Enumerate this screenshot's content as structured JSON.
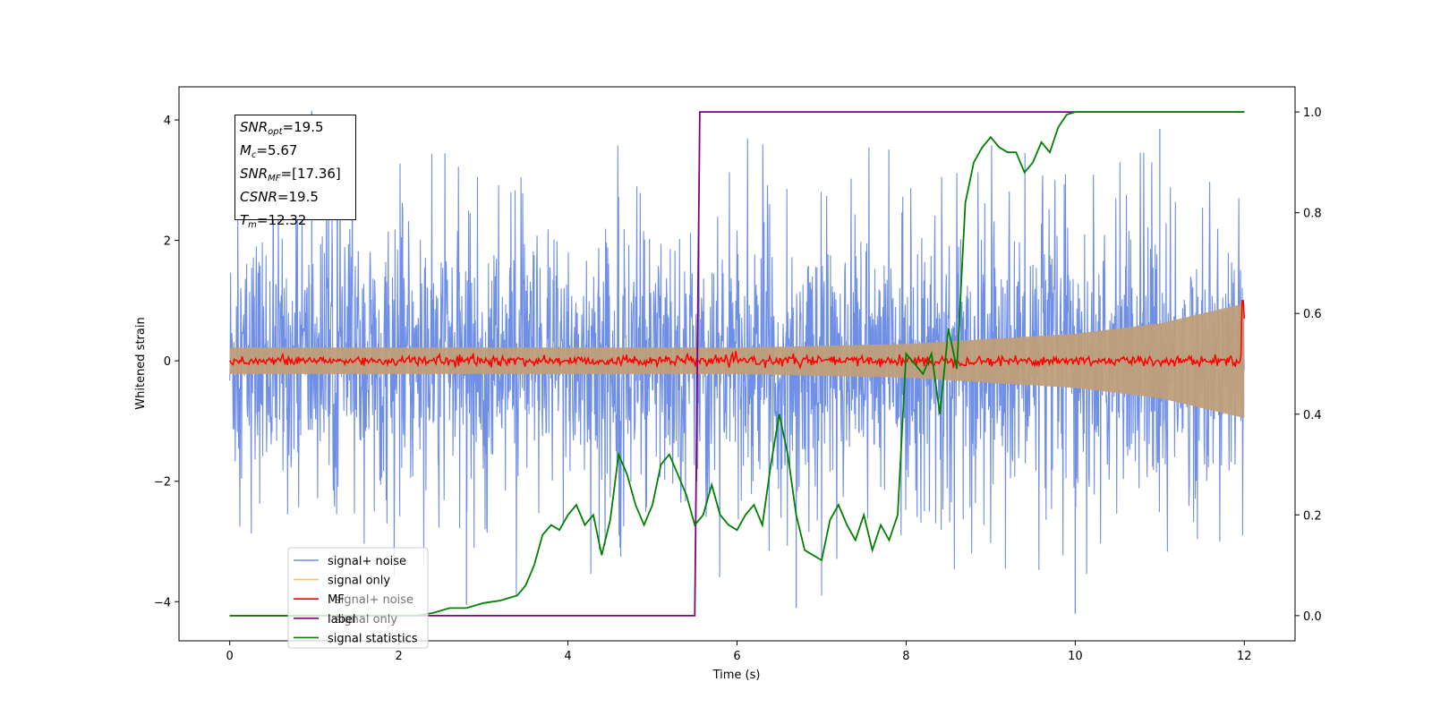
{
  "chart_data": {
    "type": "line",
    "xlabel": "Time (s)",
    "ylabel": "Whitened strain",
    "ylabel_right": "",
    "xlim": [
      -0.6,
      12.6
    ],
    "ylim": [
      -4.65,
      4.55
    ],
    "ylim_right": [
      -0.05,
      1.05
    ],
    "x_ticks": [
      0,
      2,
      4,
      6,
      8,
      10,
      12
    ],
    "x_tick_labels": [
      "0",
      "2",
      "4",
      "6",
      "8",
      "10",
      "12"
    ],
    "y_ticks": [
      -4,
      -2,
      0,
      2,
      4
    ],
    "y_tick_labels": [
      "−4",
      "−2",
      "0",
      "2",
      "4"
    ],
    "y_right_ticks": [
      0.0,
      0.2,
      0.4,
      0.6,
      0.8,
      1.0
    ],
    "y_right_tick_labels": [
      "0.0",
      "0.2",
      "0.4",
      "0.6",
      "0.8",
      "1.0"
    ],
    "grid": false,
    "legend_position": "lower-left",
    "series": [
      {
        "name": "signal+ noise",
        "axis": "left",
        "color": "#6f8fe6",
        "style": "dense noise trace",
        "x_range": [
          0,
          12
        ],
        "typical_envelope": 2.2,
        "peaks": [
          [
            0.97,
            4.15
          ],
          [
            10.0,
            -4.2
          ],
          [
            6.7,
            -4.1
          ],
          [
            2.8,
            -4.05
          ],
          [
            11.0,
            3.85
          ]
        ]
      },
      {
        "name": "signal only",
        "axis": "left",
        "color": "#bf9f7a",
        "style": "chirp with growing amplitude",
        "x_range": [
          0,
          12
        ],
        "envelope": [
          [
            0,
            0.22
          ],
          [
            6,
            0.22
          ],
          [
            8,
            0.28
          ],
          [
            10,
            0.45
          ],
          [
            11,
            0.62
          ],
          [
            12,
            0.95
          ]
        ]
      },
      {
        "name": "MF",
        "axis": "left",
        "color": "#ff0000",
        "style": "small fluctuation around zero",
        "x_range": [
          0,
          12
        ],
        "typical_amplitude": 0.06,
        "end_values": [
          [
            11.98,
            1.0
          ],
          [
            12.0,
            0.7
          ]
        ]
      },
      {
        "name": "label",
        "axis": "right",
        "color": "#800080",
        "style": "step",
        "x": [
          0,
          5.5,
          5.56,
          12
        ],
        "values": [
          0.0,
          0.0,
          1.0,
          1.0
        ]
      },
      {
        "name": "signal statistics",
        "axis": "right",
        "color": "#008000",
        "style": "line",
        "x": [
          0,
          0.3,
          0.6,
          1.0,
          1.4,
          1.8,
          2.2,
          2.4,
          2.6,
          2.8,
          3.0,
          3.2,
          3.4,
          3.5,
          3.6,
          3.7,
          3.8,
          3.9,
          4.0,
          4.1,
          4.2,
          4.3,
          4.4,
          4.5,
          4.6,
          4.7,
          4.8,
          4.9,
          5.0,
          5.1,
          5.2,
          5.3,
          5.4,
          5.5,
          5.6,
          5.7,
          5.8,
          5.9,
          6.0,
          6.1,
          6.2,
          6.3,
          6.4,
          6.5,
          6.6,
          6.7,
          6.8,
          6.9,
          7.0,
          7.1,
          7.2,
          7.3,
          7.4,
          7.5,
          7.6,
          7.7,
          7.8,
          7.9,
          8.0,
          8.1,
          8.2,
          8.3,
          8.4,
          8.5,
          8.6,
          8.7,
          8.8,
          8.9,
          9.0,
          9.1,
          9.2,
          9.3,
          9.4,
          9.5,
          9.6,
          9.7,
          9.8,
          9.9,
          10.0,
          10.2,
          10.5,
          11.0,
          11.5,
          12.0
        ],
        "values": [
          0.0,
          0.0,
          0.0,
          0.0,
          0.0,
          0.0,
          0.0,
          0.005,
          0.015,
          0.015,
          0.025,
          0.03,
          0.04,
          0.06,
          0.1,
          0.16,
          0.18,
          0.17,
          0.2,
          0.22,
          0.18,
          0.2,
          0.12,
          0.19,
          0.32,
          0.28,
          0.22,
          0.18,
          0.22,
          0.3,
          0.32,
          0.28,
          0.24,
          0.18,
          0.2,
          0.26,
          0.2,
          0.18,
          0.17,
          0.2,
          0.22,
          0.18,
          0.3,
          0.4,
          0.32,
          0.2,
          0.13,
          0.12,
          0.11,
          0.19,
          0.22,
          0.18,
          0.15,
          0.2,
          0.13,
          0.18,
          0.15,
          0.2,
          0.52,
          0.5,
          0.48,
          0.52,
          0.4,
          0.57,
          0.49,
          0.82,
          0.9,
          0.93,
          0.95,
          0.93,
          0.92,
          0.92,
          0.88,
          0.9,
          0.94,
          0.92,
          0.97,
          0.995,
          1.0,
          1.0,
          1.0,
          1.0,
          1.0,
          1.0
        ]
      }
    ],
    "annotations": [
      {
        "name": "SNR",
        "sub": "opt",
        "value": "=19.5"
      },
      {
        "name": "M",
        "sub": "c",
        "value": "=5.67"
      },
      {
        "name": "SNR",
        "sub": "MF",
        "value": "=[17.36]"
      },
      {
        "name": "CSNR",
        "sub": "",
        "value": "=19.5"
      },
      {
        "name": "T",
        "sub": "m",
        "value": "=12.32"
      }
    ],
    "legend_echo": [
      "signal+ noise",
      "signal only"
    ]
  }
}
